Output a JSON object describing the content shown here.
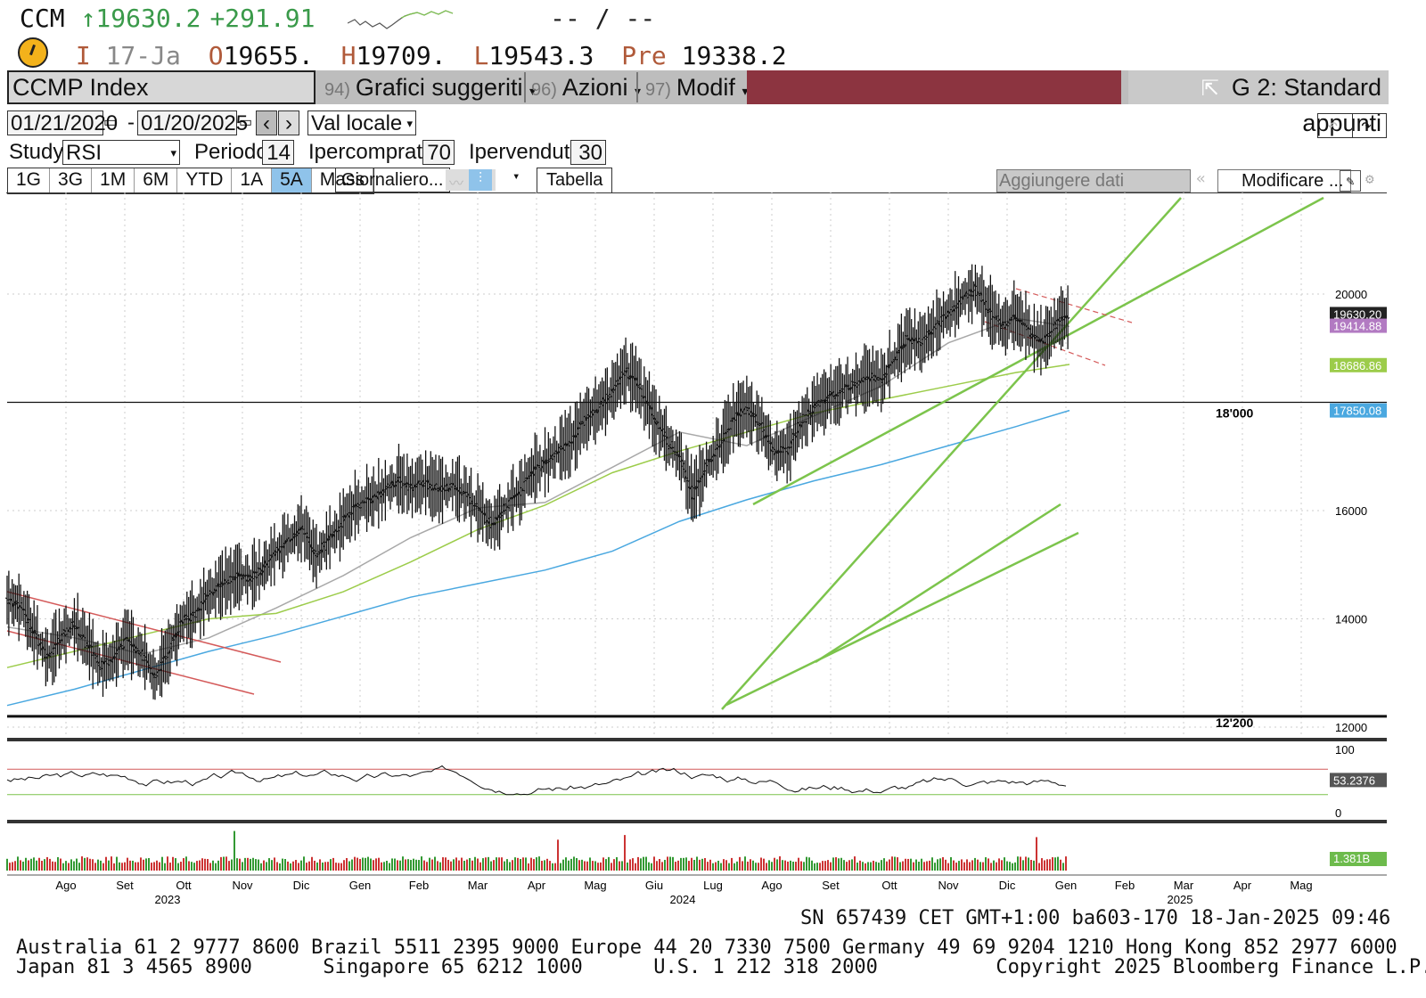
{
  "quote": {
    "ticker": "CCM",
    "price": "↑19630.2",
    "change": "+291.91",
    "bid_ask": "-- / --",
    "date_label": "I",
    "date": "17-Ja",
    "open_label": "O",
    "open": "19655.",
    "high_label": "H",
    "high": "19709.",
    "low_label": "L",
    "low": "19543.3",
    "prev_label": "Pre",
    "prev": "19338.2"
  },
  "toolbar": {
    "security": "CCMP Index",
    "menu1_num": "94)",
    "menu1": "Grafici suggeriti",
    "menu2_num": "96)",
    "menu2": "Azioni",
    "menu3_num": "97)",
    "menu3": "Modif",
    "layout": "G 2: Standard appunti"
  },
  "range": {
    "start": "01/21/2020",
    "dash": "-",
    "end": "01/20/2025",
    "currency": "Val locale"
  },
  "study": {
    "label": "Study",
    "value": "RSI",
    "period_label": "Periodo",
    "period": "14",
    "overbought_label": "Ipercomprato",
    "overbought": "70",
    "oversold_label": "Ipervenduto",
    "oversold": "30"
  },
  "periods": [
    "1G",
    "3G",
    "1M",
    "6M",
    "YTD",
    "1A",
    "5A",
    "Mass"
  ],
  "active_period": "5A",
  "frequency": "Giornaliero...",
  "table_btn": "Tabella",
  "add_data": "Aggiungere dati",
  "edit_btn": "Modificare ...",
  "colors": {
    "up": "#3a9a4a",
    "channel": "#7cc44c",
    "ma_grey": "#a8a8a8",
    "ma_green": "#9ccc4a",
    "ma_blue": "#4aa8e0",
    "bear_channel": "#d45a5a",
    "toolbar_red": "#8c3440",
    "active_tab": "#8fc3ea"
  },
  "chart_data": {
    "type": "line",
    "y_ticks": [
      "20000",
      "16000",
      "14000",
      "12000"
    ],
    "y_tick_values": [
      20000,
      16000,
      14000,
      12000
    ],
    "x_months": [
      "Ago",
      "Set",
      "Ott",
      "Nov",
      "Dic",
      "Gen",
      "Feb",
      "Mar",
      "Apr",
      "Mag",
      "Giu",
      "Lug",
      "Ago",
      "Set",
      "Ott",
      "Nov",
      "Dic",
      "Gen",
      "Feb",
      "Mar",
      "Apr",
      "Mag"
    ],
    "x_years": [
      "2023",
      "2024",
      "2025"
    ],
    "levels": [
      {
        "label": "18'000",
        "value": 18000
      },
      {
        "label": "12'200",
        "value": 12200
      }
    ],
    "tags": [
      {
        "text": "19630.20",
        "value": 19630.2,
        "color": "#222"
      },
      {
        "text": "19414.88",
        "value": 19414.88,
        "color": "#b27ac2"
      },
      {
        "text": "18686.86",
        "value": 18686.86,
        "color": "#9ccc4a"
      },
      {
        "text": "17850.08",
        "value": 17850.08,
        "color": "#4aa8e0"
      }
    ],
    "price_path": [
      [
        0,
        14350
      ],
      [
        2,
        14250
      ],
      [
        4,
        13750
      ],
      [
        6,
        13300
      ],
      [
        8,
        13650
      ],
      [
        10,
        13900
      ],
      [
        12,
        13500
      ],
      [
        14,
        13150
      ],
      [
        16,
        13300
      ],
      [
        18,
        13650
      ],
      [
        20,
        13350
      ],
      [
        22,
        12900
      ],
      [
        24,
        13400
      ],
      [
        26,
        13950
      ],
      [
        28,
        14100
      ],
      [
        30,
        14450
      ],
      [
        32,
        14650
      ],
      [
        34,
        14800
      ],
      [
        36,
        14750
      ],
      [
        38,
        14900
      ],
      [
        40,
        15250
      ],
      [
        42,
        15500
      ],
      [
        44,
        15650
      ],
      [
        46,
        15200
      ],
      [
        48,
        15450
      ],
      [
        50,
        15800
      ],
      [
        52,
        16100
      ],
      [
        54,
        16200
      ],
      [
        56,
        16350
      ],
      [
        58,
        16550
      ],
      [
        60,
        16450
      ],
      [
        62,
        16500
      ],
      [
        64,
        16400
      ],
      [
        66,
        16450
      ],
      [
        68,
        16350
      ],
      [
        70,
        16050
      ],
      [
        72,
        15750
      ],
      [
        74,
        16050
      ],
      [
        76,
        16300
      ],
      [
        78,
        16700
      ],
      [
        80,
        16900
      ],
      [
        82,
        17100
      ],
      [
        84,
        17300
      ],
      [
        86,
        17700
      ],
      [
        88,
        17900
      ],
      [
        90,
        18200
      ],
      [
        92,
        18600
      ],
      [
        94,
        18300
      ],
      [
        96,
        17800
      ],
      [
        98,
        17300
      ],
      [
        100,
        17050
      ],
      [
        102,
        16300
      ],
      [
        104,
        16800
      ],
      [
        106,
        17200
      ],
      [
        108,
        17700
      ],
      [
        110,
        17900
      ],
      [
        112,
        17600
      ],
      [
        114,
        17100
      ],
      [
        116,
        17100
      ],
      [
        118,
        17600
      ],
      [
        120,
        17900
      ],
      [
        122,
        18100
      ],
      [
        124,
        18200
      ],
      [
        126,
        18350
      ],
      [
        128,
        18500
      ],
      [
        130,
        18400
      ],
      [
        132,
        18800
      ],
      [
        134,
        19200
      ],
      [
        136,
        19100
      ],
      [
        138,
        19400
      ],
      [
        140,
        19650
      ],
      [
        142,
        19900
      ],
      [
        144,
        20100
      ],
      [
        146,
        19700
      ],
      [
        148,
        19400
      ],
      [
        150,
        19600
      ],
      [
        152,
        19300
      ],
      [
        154,
        19150
      ],
      [
        156,
        19450
      ],
      [
        158,
        19630
      ]
    ],
    "rsi": {
      "ticks": [
        "100",
        "0"
      ],
      "last": "53.2376",
      "overbought": 70,
      "oversold": 30
    },
    "volume": {
      "last": "1.381B"
    }
  },
  "footer": {
    "line1": "SN 657439 CET   GMT+1:00 ba603-170 18-Jan-2025 09:46",
    "contacts1": "Australia 61 2 9777 8600 Brazil 5511 2395 9000 Europe 44 20 7330 7500 Germany 49 69 9204 1210 Hong Kong 852 2977 6000",
    "contacts2": "Japan 81 3 4565 8900      Singapore 65 6212 1000      U.S. 1 212 318 2000          Copyright 2025 Bloomberg Finance L.P."
  }
}
